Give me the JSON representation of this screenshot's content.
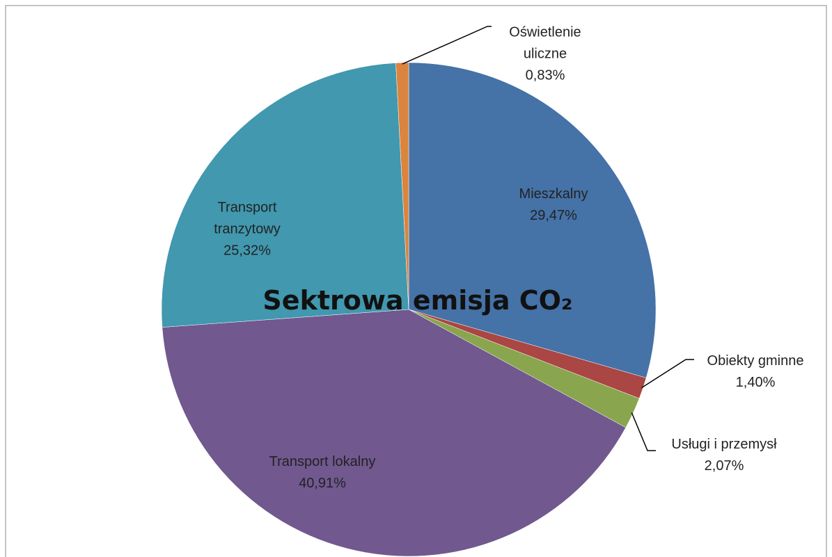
{
  "chart_data": {
    "type": "pie",
    "title": "Sektrowa emisja CO₂",
    "categories": [
      "Mieszkalny",
      "Obiekty gminne",
      "Usługi i przemysł",
      "Transport lokalny",
      "Transport tranzytowy",
      "Oświetlenie uliczne"
    ],
    "values": [
      29.47,
      1.4,
      2.07,
      40.91,
      25.32,
      0.83
    ],
    "value_labels": [
      "29,47%",
      "1,40%",
      "2,07%",
      "40,91%",
      "25,32%",
      "0,83%"
    ],
    "colors": [
      "#4572a7",
      "#aa4643",
      "#89a54e",
      "#71588f",
      "#4198af",
      "#db843d"
    ]
  }
}
